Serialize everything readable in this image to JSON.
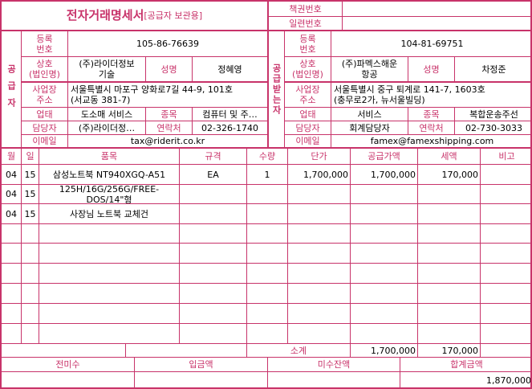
{
  "header": {
    "title": "전자거래명세서",
    "subtitle": "[공급자 보관용]",
    "book_no_label": "책권번호",
    "book_no": "",
    "serial_no_label": "일련번호",
    "serial_no": ""
  },
  "labels": {
    "reg_no": "등록\n번호",
    "company": "상호\n(법인명)",
    "name": "성명",
    "address": "사업장\n주소",
    "business_type": "업태",
    "item_type": "종목",
    "manager": "담당자",
    "contact": "연락처",
    "email": "이메일"
  },
  "supplier": {
    "side_label": "공급자",
    "reg_no": "105-86-76639",
    "company": "(주)라이더정보\n기술",
    "name": "정혜영",
    "address": "서울특별시 마포구 양화로7길 44-9, 101호\n(서교동 381-7)",
    "business_type": "도소매 서비스",
    "item_type": "컴퓨터 및 주…",
    "manager": "(주)라이더정…",
    "contact": "02-326-1740",
    "email": "tax@riderit.co.kr"
  },
  "buyer": {
    "side_label": "공급받는자",
    "reg_no": "104-81-69751",
    "company": "(주)파멕스해운\n항공",
    "name": "차정준",
    "address": "서울특별시 중구 퇴계로 141-7, 1603호\n(충무로2가, 뉴서울빌딩)",
    "business_type": "서비스",
    "item_type": "복합운송주선",
    "manager": "회계담당자",
    "contact": "02-730-3033",
    "email": "famex@famexshipping.com"
  },
  "items": {
    "columns": [
      "월",
      "일",
      "품목",
      "규격",
      "수량",
      "단가",
      "공급가액",
      "세액",
      "비고"
    ],
    "rows": [
      [
        "04",
        "15",
        "삼성노트북 NT940XGQ-A51",
        "EA",
        "1",
        "1,700,000",
        "1,700,000",
        "170,000",
        ""
      ],
      [
        "04",
        "15",
        "125H/16G/256G/FREE-DOS/14\"형",
        "",
        "",
        "",
        "",
        "",
        ""
      ],
      [
        "04",
        "15",
        "사장님 노트북 교체건",
        "",
        "",
        "",
        "",
        "",
        ""
      ]
    ],
    "subtotal_label": "소계",
    "subtotal_supply": "1,700,000",
    "subtotal_tax": "170,000"
  },
  "footer": {
    "labels": [
      "전미수",
      "입금액",
      "미수잔액",
      "합계금액"
    ],
    "values": [
      "",
      "",
      "",
      "1,870,000"
    ]
  },
  "colors": {
    "border": "#c8336a",
    "label": "#c8336a"
  }
}
